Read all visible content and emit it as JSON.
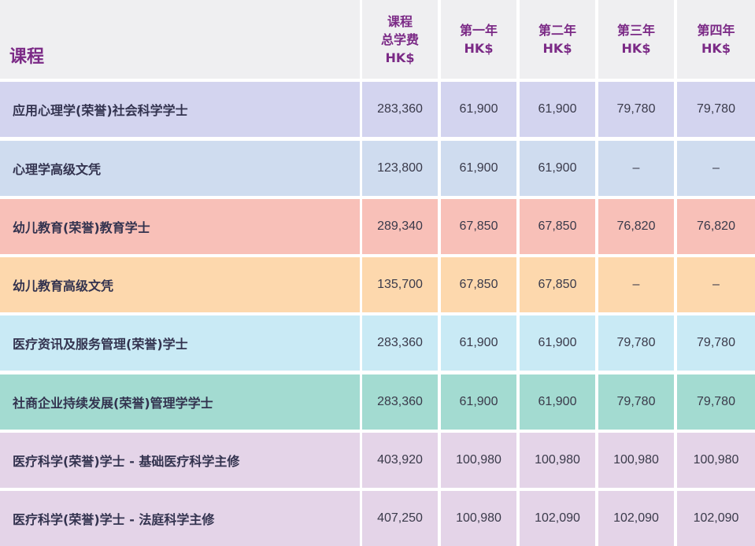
{
  "header": {
    "course": "课程",
    "total": [
      "课程",
      "总学费",
      "HK$"
    ],
    "year1": [
      "第一年",
      "HK$"
    ],
    "year2": [
      "第二年",
      "HK$"
    ],
    "year3": [
      "第三年",
      "HK$"
    ],
    "year4": [
      "第四年",
      "HK$"
    ]
  },
  "rows": [
    {
      "name": "应用心理学(荣誉)社会科学学士",
      "total": "283,360",
      "y1": "61,900",
      "y2": "61,900",
      "y3": "79,780",
      "y4": "79,780",
      "color": "#d3d4ef"
    },
    {
      "name": "心理学高级文凭",
      "total": "123,800",
      "y1": "61,900",
      "y2": "61,900",
      "y3": "–",
      "y4": "–",
      "color": "#cfdcef"
    },
    {
      "name": "幼儿教育(荣誉)教育学士",
      "total": "289,340",
      "y1": "67,850",
      "y2": "67,850",
      "y3": "76,820",
      "y4": "76,820",
      "color": "#f8c0b8"
    },
    {
      "name": "幼儿教育高级文凭",
      "total": "135,700",
      "y1": "67,850",
      "y2": "67,850",
      "y3": "–",
      "y4": "–",
      "color": "#fdd8ad"
    },
    {
      "name": "医疗资讯及服务管理(荣誉)学士",
      "total": "283,360",
      "y1": "61,900",
      "y2": "61,900",
      "y3": "79,780",
      "y4": "79,780",
      "color": "#c9eaf5"
    },
    {
      "name": "社商企业持续发展(荣誉)管理学学士",
      "total": "283,360",
      "y1": "61,900",
      "y2": "61,900",
      "y3": "79,780",
      "y4": "79,780",
      "color": "#a3dbd1"
    },
    {
      "name": "医疗科学(荣誉)学士 - 基础医疗科学主修",
      "total": "403,920",
      "y1": "100,980",
      "y2": "100,980",
      "y3": "100,980",
      "y4": "100,980",
      "color": "#e4d4e8"
    },
    {
      "name": "医疗科学(荣誉)学士 - 法庭科学主修",
      "total": "407,250",
      "y1": "100,980",
      "y2": "102,090",
      "y3": "102,090",
      "y4": "102,090",
      "color": "#e4d4e8"
    }
  ]
}
